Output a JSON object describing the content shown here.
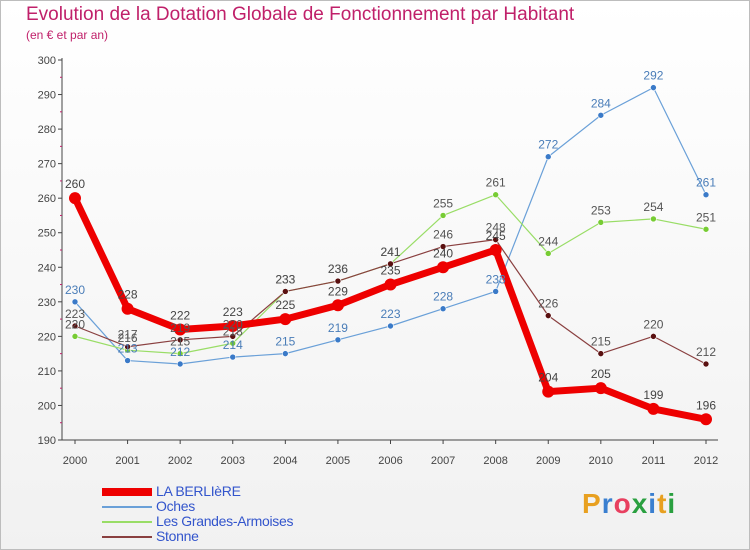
{
  "title": "Evolution de la Dotation Globale de Fonctionnement par Habitant",
  "subtitle": "(en € et par an)",
  "logo": {
    "text": "Proxiti",
    "colors": [
      "#e8a020",
      "#3a7fd0",
      "#e84060",
      "#2aa040",
      "#3a7fd0",
      "#e8a020",
      "#2aa040"
    ]
  },
  "chart_data": {
    "type": "line",
    "title": "Evolution de la Dotation Globale de Fonctionnement par Habitant",
    "subtitle": "(en € et par an)",
    "x": [
      "2000",
      "2001",
      "2002",
      "2003",
      "2004",
      "2005",
      "2006",
      "2007",
      "2008",
      "2009",
      "2010",
      "2011",
      "2012"
    ],
    "ylim": [
      190,
      300
    ],
    "yticks": [
      190,
      200,
      210,
      220,
      230,
      240,
      250,
      260,
      270,
      280,
      290,
      300
    ],
    "grid": false,
    "legend_position": "bottom-left",
    "series": [
      {
        "name": "LA BERLIèRE",
        "color": "#ee0000",
        "marker": "#ee0000",
        "label_color": "#444444",
        "width": 7,
        "marker_r": 6,
        "values": [
          260,
          228,
          222,
          223,
          225,
          229,
          235,
          240,
          245,
          204,
          205,
          199,
          196
        ],
        "labels": [
          "260",
          "228",
          "222",
          "223",
          "225",
          "229",
          "235",
          "240",
          "245",
          "204",
          "205",
          "199",
          "196"
        ]
      },
      {
        "name": "Oches",
        "color": "#6aa0d8",
        "marker": "#3a7ac8",
        "label_color": "#4a7db8",
        "width": 1.2,
        "marker_r": 3,
        "values": [
          230,
          213,
          212,
          214,
          215,
          219,
          223,
          228,
          233,
          272,
          284,
          292,
          261
        ],
        "labels": [
          "230",
          "213",
          "212",
          "214",
          "215",
          "219",
          "223",
          "228",
          "233",
          "272",
          "284",
          "292",
          "261"
        ]
      },
      {
        "name": "Les Grandes-Armoises",
        "color": "#99dd66",
        "marker": "#77cc33",
        "label_color": "#555555",
        "width": 1.2,
        "marker_r": 3,
        "values": [
          220,
          216,
          215,
          218,
          233,
          236,
          241,
          255,
          261,
          244,
          253,
          254,
          251
        ],
        "labels": [
          "220",
          "216",
          "215",
          "218",
          "233",
          "236",
          "241",
          "255",
          "261",
          "244",
          "253",
          "254",
          "251"
        ]
      },
      {
        "name": "Stonne",
        "color": "#8a4040",
        "marker": "#5a1010",
        "label_color": "#555555",
        "width": 1.2,
        "marker_r": 3,
        "values": [
          223,
          217,
          219,
          220,
          233,
          236,
          241,
          246,
          248,
          226,
          215,
          220,
          212
        ],
        "labels": [
          "223",
          "217",
          "219",
          "220",
          "233",
          "236",
          "241",
          "246",
          "248",
          "226",
          "215",
          "220",
          "212"
        ]
      }
    ]
  }
}
